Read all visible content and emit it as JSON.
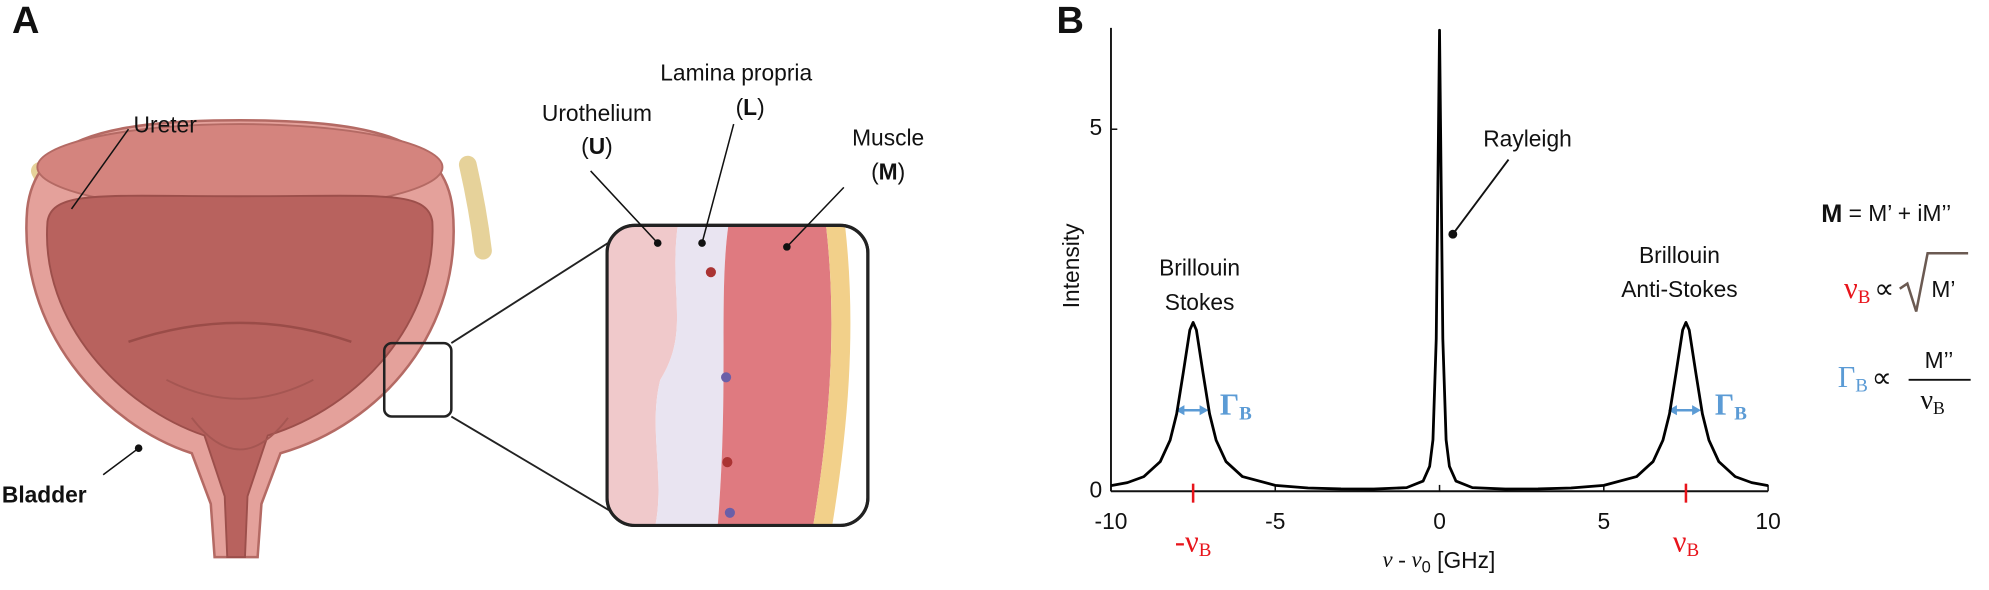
{
  "panel_a": {
    "letter": "A",
    "ureter": "Ureter",
    "bladder": "Bladder",
    "urothelium": {
      "name": "Urothelium",
      "abbr": [
        "(",
        "U",
        ")"
      ]
    },
    "lamina": {
      "name": "Lamina propria",
      "abbr": [
        "(",
        "L",
        ")"
      ]
    },
    "muscle": {
      "name": "Muscle",
      "abbr": [
        "(",
        "M",
        ")"
      ]
    }
  },
  "panel_b": {
    "letter": "B",
    "equations": {
      "modulus": [
        "M",
        " = M’ + iM’’"
      ],
      "shift": [
        "ν",
        "B",
        "∝",
        "M’"
      ],
      "width": [
        "Γ",
        "B",
        "∝",
        "M’’",
        "ν",
        "B"
      ]
    }
  },
  "chart_data": {
    "type": "line",
    "ylabel": "Intensity",
    "xlabel": {
      "main": "ν - ν",
      "sub": "0",
      "unit": " [GHz]"
    },
    "xlim": [
      -10,
      10
    ],
    "ylim": [
      0,
      6.4
    ],
    "xticks": [
      -10,
      -5,
      0,
      5,
      10
    ],
    "yticks": [
      0,
      5
    ],
    "color": "#000000",
    "x": [
      -10,
      -9.5,
      -9,
      -8.5,
      -8.2,
      -8,
      -7.8,
      -7.6,
      -7.5,
      -7.4,
      -7.2,
      -7,
      -6.8,
      -6.5,
      -6,
      -5,
      -4,
      -3,
      -2,
      -1,
      -0.5,
      -0.3,
      -0.2,
      -0.1,
      -0.05,
      0,
      0.05,
      0.1,
      0.2,
      0.3,
      0.5,
      1,
      2,
      3,
      4,
      5,
      6,
      6.5,
      6.8,
      7,
      7.2,
      7.4,
      7.5,
      7.6,
      7.8,
      8,
      8.2,
      8.5,
      9,
      9.5,
      10
    ],
    "values": [
      0.078,
      0.119,
      0.202,
      0.409,
      0.705,
      1.07,
      1.637,
      2.227,
      2.332,
      2.227,
      1.637,
      1.07,
      0.705,
      0.41,
      0.203,
      0.081,
      0.045,
      0.032,
      0.03,
      0.05,
      0.14,
      0.345,
      0.71,
      2.105,
      4.221,
      6.367,
      4.221,
      2.105,
      0.71,
      0.345,
      0.14,
      0.05,
      0.03,
      0.032,
      0.045,
      0.081,
      0.203,
      0.41,
      0.705,
      1.07,
      1.637,
      2.227,
      2.332,
      2.227,
      1.637,
      1.07,
      0.705,
      0.409,
      0.202,
      0.119,
      0.078
    ],
    "annotations": {
      "rayleigh": "Rayleigh",
      "stokes": [
        "Brillouin",
        "Stokes"
      ],
      "anti_stokes": [
        "Brillouin",
        "Anti-Stokes"
      ],
      "width_left": [
        "Γ",
        "B"
      ],
      "width_right": [
        "Γ",
        "B"
      ]
    },
    "markers": [
      {
        "x": -7.5,
        "label": "-ν",
        "sub": "B",
        "color": "#e8141b"
      },
      {
        "x": 7.5,
        "label": "ν",
        "sub": "B",
        "color": "#e8141b"
      }
    ]
  }
}
